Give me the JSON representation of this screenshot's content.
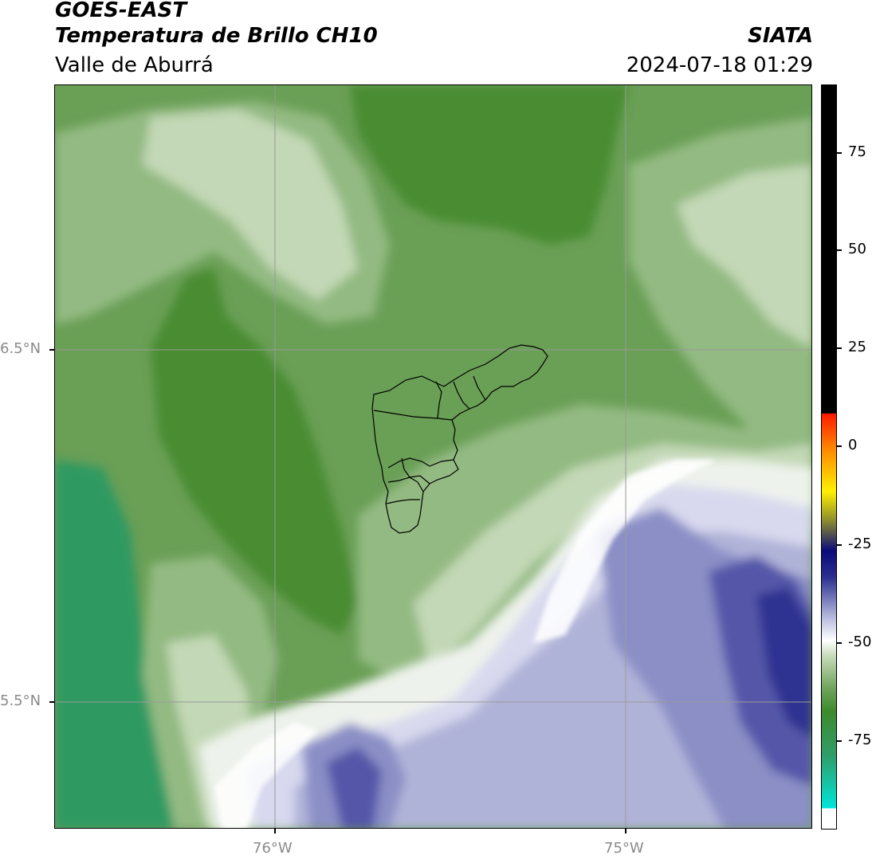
{
  "header": {
    "satellite": "GOES-EAST",
    "product": "Temperatura de Brillo CH10",
    "region": "Valle de Aburrá",
    "organization": "SIATA",
    "timestamp": "2024-07-18 01:29"
  },
  "axes": {
    "lat_labels": [
      "6.5°N",
      "5.5°N"
    ],
    "lon_labels": [
      "76°W",
      "75°W"
    ]
  },
  "colorbar": {
    "tick_labels": [
      "75",
      "50",
      "25",
      "0",
      "-25",
      "-50",
      "-75"
    ],
    "colors": {
      "black": "#000000",
      "red": "#ff1a00",
      "orange": "#ff8c00",
      "yellow": "#fff000",
      "olive": "#8a8a30",
      "navy": "#0a0a7a",
      "indigo": "#2b2f8f",
      "lavender": "#b8bcdf",
      "white": "#ffffff",
      "pale_green": "#c9dcbc",
      "mid_green": "#6fa35c",
      "dark_green": "#3e8a2c",
      "teal_green": "#2f9e6a",
      "cyan": "#00e5d8"
    }
  },
  "map_colors": {
    "dark_green": "#4a8c32",
    "mid_green": "#6a9f56",
    "light_green": "#93ba82",
    "pale_green": "#c3d8b6",
    "near_white": "#eef2ec",
    "white": "#ffffff",
    "pale_lavender": "#d8d9ee",
    "lavender": "#b0b3d8",
    "periwinkle": "#8b8fc6",
    "indigo": "#5557a8",
    "deep_indigo": "#2e3190",
    "teal": "#2f9a62",
    "grid": "#9a9a9a",
    "boundary": "#000000"
  }
}
